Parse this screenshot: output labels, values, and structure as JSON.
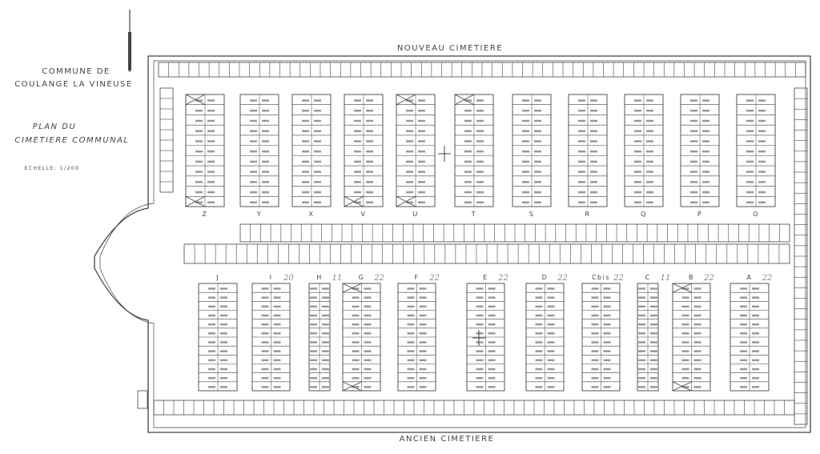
{
  "title": {
    "line1": "COMMUNE DE",
    "line2": "COULANGE LA VINEUSE",
    "line3": "PLAN DU",
    "line4": "CIMETIERE COMMUNAL",
    "scale": "ECHELLE: 1/200"
  },
  "labels": {
    "north": "NOUVEAU CIMETIERE",
    "south": "ANCIEN CIMETIERE"
  },
  "upper_sections": [
    {
      "letter": "Z",
      "note": ""
    },
    {
      "letter": "Y",
      "note": ""
    },
    {
      "letter": "X",
      "note": ""
    },
    {
      "letter": "V",
      "note": ""
    },
    {
      "letter": "U",
      "note": ""
    },
    {
      "letter": "T",
      "note": ""
    },
    {
      "letter": "S",
      "note": ""
    },
    {
      "letter": "R",
      "note": ""
    },
    {
      "letter": "Q",
      "note": ""
    },
    {
      "letter": "P",
      "note": ""
    },
    {
      "letter": "O",
      "note": ""
    }
  ],
  "lower_sections": [
    {
      "letter": "J",
      "note": ""
    },
    {
      "letter": "I",
      "note": "20"
    },
    {
      "letter": "H",
      "note": "11"
    },
    {
      "letter": "G",
      "note": "22"
    },
    {
      "letter": "F",
      "note": "22"
    },
    {
      "letter": "E",
      "note": "22"
    },
    {
      "letter": "D",
      "note": "22"
    },
    {
      "letter": "Cbis",
      "note": "22"
    },
    {
      "letter": "C",
      "note": "11"
    },
    {
      "letter": "B",
      "note": "22"
    },
    {
      "letter": "A",
      "note": "22"
    }
  ],
  "colors": {
    "ink": "#444444",
    "paper": "#ffffff"
  }
}
